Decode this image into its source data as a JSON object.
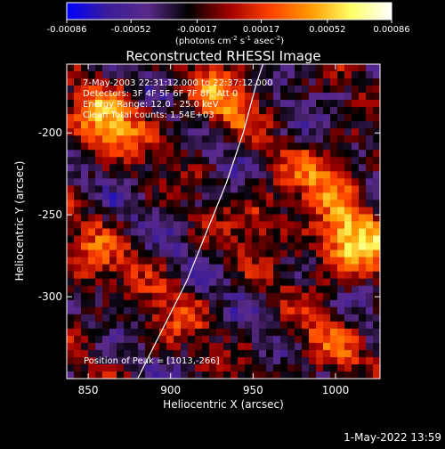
{
  "chart_data": {
    "type": "heatmap",
    "title": "Reconstructed RHESSI Image",
    "xlabel": "Heliocentric X (arcsec)",
    "ylabel": "Heliocentric Y (arcsec)",
    "xlim": [
      837,
      1027
    ],
    "ylim": [
      -350,
      -158
    ],
    "x_ticks": [
      850,
      900,
      950,
      1000
    ],
    "y_ticks": [
      -200,
      -250,
      -300
    ],
    "colorbar": {
      "ticks": [
        "-0.00086",
        "-0.00052",
        "-0.00017",
        "0.00017",
        "0.00052",
        "0.00086"
      ],
      "tick_values": [
        -0.00086,
        -0.00052,
        -0.00017,
        0.00017,
        0.00052,
        0.00086
      ],
      "unit_label": "(photons cm",
      "unit_sup1": "-2",
      "unit_mid": " s",
      "unit_sup2": "-1",
      "unit_mid2": " asec",
      "unit_sup3": "-2",
      "unit_end": ")",
      "colormap": [
        "#0000ff",
        "#3a1c9a",
        "#5a2a8a",
        "#000000",
        "#a00000",
        "#ff4000",
        "#ff9900",
        "#ffff66",
        "#ffffff"
      ]
    },
    "annotations": [
      "7-May-2003 22:31:12.000 to 22:37:12.000",
      "Detectors: 3F 4F 5F 6F 7F 8F, Att 0",
      "Energy Range: 12.0 - 25.0 keV",
      "Clean    Total counts: 1.54E+03"
    ],
    "peak_label": "Position of Peak = [1013,-266]",
    "peak": [
      1013,
      -266
    ],
    "limb_curve": [
      [
        880,
        -350
      ],
      [
        895,
        -320
      ],
      [
        910,
        -290
      ],
      [
        922,
        -260
      ],
      [
        934,
        -230
      ],
      [
        944,
        -200
      ],
      [
        952,
        -170
      ],
      [
        956,
        -158
      ]
    ],
    "hotspots": [
      {
        "x": 1010,
        "y": -268,
        "value": 0.00086
      },
      {
        "x": 860,
        "y": -195,
        "value": 0.0007
      },
      {
        "x": 930,
        "y": -180,
        "value": 0.0005
      },
      {
        "x": 995,
        "y": -225,
        "value": 0.00045
      },
      {
        "x": 960,
        "y": -250,
        "value": 0.00035
      },
      {
        "x": 850,
        "y": -280,
        "value": 0.0004
      },
      {
        "x": 990,
        "y": -330,
        "value": 0.0003
      },
      {
        "x": 900,
        "y": -310,
        "value": 0.00028
      }
    ]
  },
  "footer": {
    "date": "1-May-2022 13:59"
  }
}
